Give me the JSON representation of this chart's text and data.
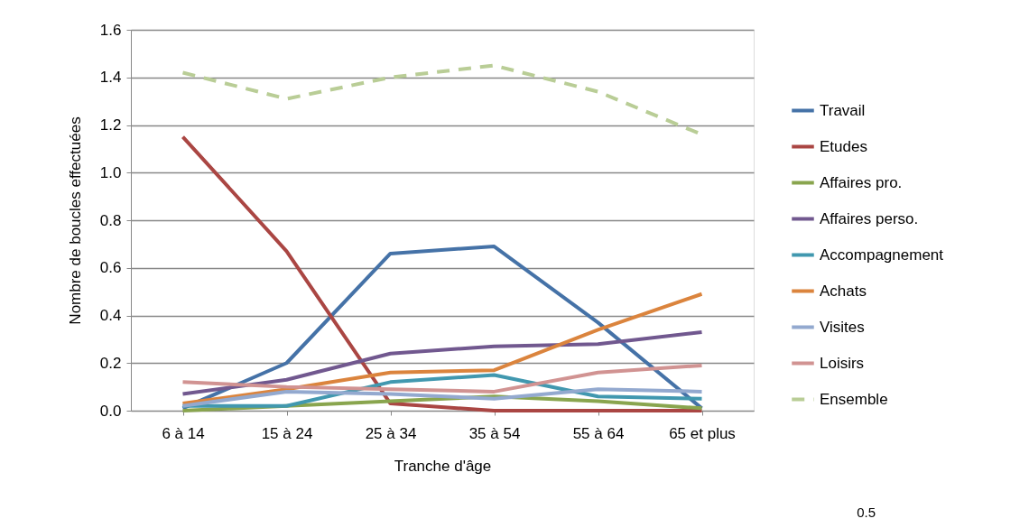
{
  "chart_data": {
    "type": "line",
    "xlabel": "Tranche d'âge",
    "ylabel": "Nombre de boucles effectuées",
    "categories": [
      "6 à 14",
      "15 à 24",
      "25 à 34",
      "35 à 54",
      "55 à 64",
      "65 et plus"
    ],
    "ylim": [
      0,
      1.6
    ],
    "yticks": [
      {
        "value": 0,
        "label": "0.0"
      },
      {
        "value": 0.2,
        "label": "0.2"
      },
      {
        "value": 0.4,
        "label": "0.4"
      },
      {
        "value": 0.6,
        "label": "0.6"
      },
      {
        "value": 0.8,
        "label": "0.8"
      },
      {
        "value": 1.0,
        "label": "1.0"
      },
      {
        "value": 1.2,
        "label": "1.2"
      },
      {
        "value": 1.4,
        "label": "1.4"
      },
      {
        "value": 1.6,
        "label": "1.6"
      }
    ],
    "grid": "y",
    "legend": "right",
    "marker": "none",
    "series": [
      {
        "name": "Travail",
        "color": "#4572a7",
        "values": [
          0.01,
          0.2,
          0.66,
          0.69,
          0.37,
          0.01
        ]
      },
      {
        "name": "Etudes",
        "color": "#aa4643",
        "values": [
          1.15,
          0.67,
          0.03,
          0.0,
          0.0,
          0.0
        ]
      },
      {
        "name": "Affaires pro.",
        "color": "#89a54e",
        "values": [
          0.0,
          0.02,
          0.04,
          0.06,
          0.04,
          0.01
        ]
      },
      {
        "name": "Affaires perso.",
        "color": "#71588f",
        "values": [
          0.07,
          0.13,
          0.24,
          0.27,
          0.28,
          0.33
        ]
      },
      {
        "name": "Accompagnement",
        "color": "#4198af",
        "values": [
          0.02,
          0.02,
          0.12,
          0.15,
          0.06,
          0.05
        ]
      },
      {
        "name": "Achats",
        "color": "#db843d",
        "values": [
          0.03,
          0.09,
          0.16,
          0.17,
          0.34,
          0.49
        ]
      },
      {
        "name": "Visites",
        "color": "#93a9cf",
        "values": [
          0.02,
          0.08,
          0.07,
          0.05,
          0.09,
          0.08
        ]
      },
      {
        "name": "Loisirs",
        "color": "#d19392",
        "values": [
          0.12,
          0.1,
          0.09,
          0.08,
          0.16,
          0.19
        ]
      },
      {
        "name": "Ensemble",
        "color": "#b9cd96",
        "line_style": "dashed",
        "values": [
          1.42,
          1.31,
          1.4,
          1.45,
          1.34,
          1.16
        ]
      }
    ],
    "annotations": [
      "0.5"
    ]
  }
}
